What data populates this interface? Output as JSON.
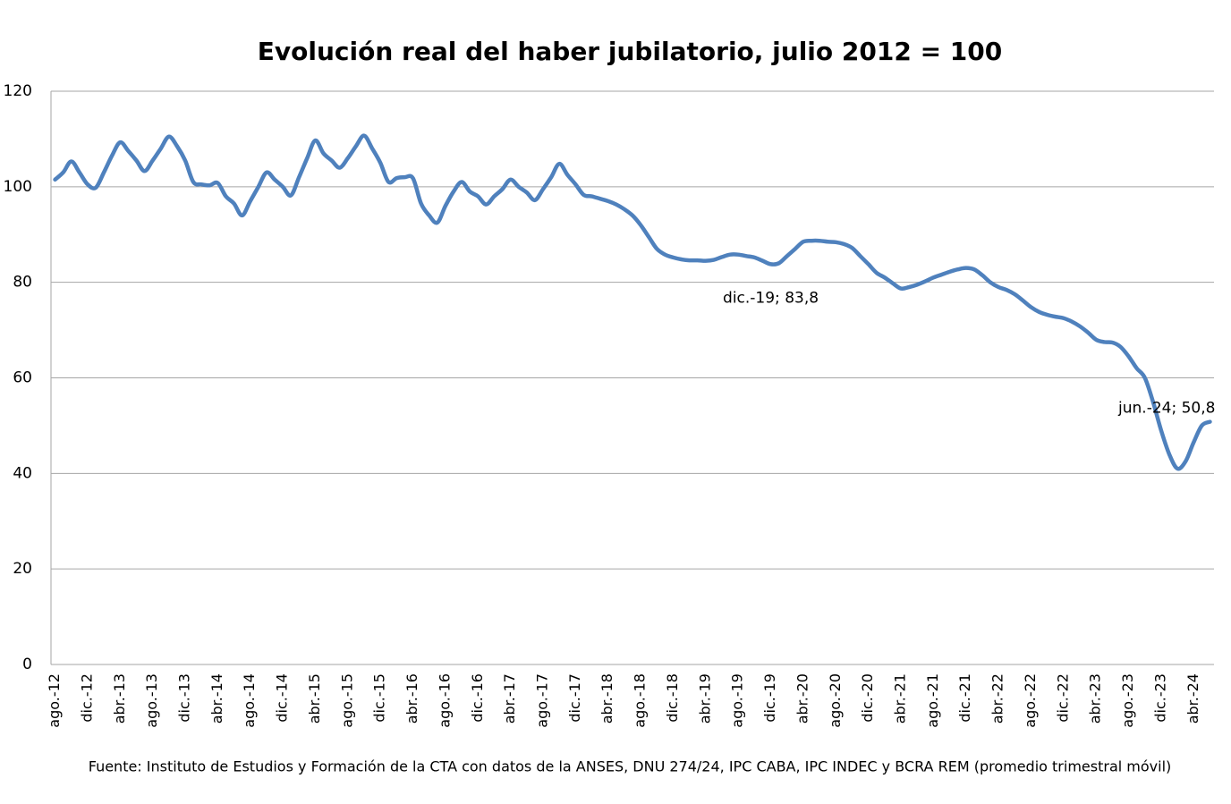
{
  "chart_data": {
    "type": "line",
    "title": "Evolución real del haber jubilatorio, julio 2012 = 100",
    "source": "Fuente: Instituto de Estudios y Formación de la CTA con datos de la ANSES, DNU 274/24, IPC CABA, IPC INDEC y BCRA REM (promedio trimestral móvil)",
    "categories": [
      "ago.-12",
      null,
      null,
      null,
      "dic.-12",
      null,
      null,
      null,
      "abr.-13",
      null,
      null,
      null,
      "ago.-13",
      null,
      null,
      null,
      "dic.-13",
      null,
      null,
      null,
      "abr.-14",
      null,
      null,
      null,
      "ago.-14",
      null,
      null,
      null,
      "dic.-14",
      null,
      null,
      null,
      "abr.-15",
      null,
      null,
      null,
      "ago.-15",
      null,
      null,
      null,
      "dic.-15",
      null,
      null,
      null,
      "abr.-16",
      null,
      null,
      null,
      "ago.-16",
      null,
      null,
      null,
      "dic.-16",
      null,
      null,
      null,
      "abr.-17",
      null,
      null,
      null,
      "ago.-17",
      null,
      null,
      null,
      "dic.-17",
      null,
      null,
      null,
      "abr.-18",
      null,
      null,
      null,
      "ago.-18",
      null,
      null,
      null,
      "dic.-18",
      null,
      null,
      null,
      "abr.-19",
      null,
      null,
      null,
      "ago.-19",
      null,
      null,
      null,
      "dic.-19",
      null,
      null,
      null,
      "abr.-20",
      null,
      null,
      null,
      "ago.-20",
      null,
      null,
      null,
      "dic.-20",
      null,
      null,
      null,
      "abr.-21",
      null,
      null,
      null,
      "ago.-21",
      null,
      null,
      null,
      "dic.-21",
      null,
      null,
      null,
      "abr.-22",
      null,
      null,
      null,
      "ago.-22",
      null,
      null,
      null,
      "dic.-22",
      null,
      null,
      null,
      "abr.-23",
      null,
      null,
      null,
      "ago.-23",
      null,
      null,
      null,
      "dic.-23",
      null,
      null,
      null,
      "abr.-24",
      null,
      null
    ],
    "series": [
      {
        "color": "#4f81bd",
        "values": [
          101.5,
          103,
          105.3,
          103,
          100.5,
          99.8,
          103,
          106.5,
          109.3,
          107.5,
          105.5,
          103.3,
          105.5,
          108,
          110.5,
          108.5,
          105.5,
          101,
          100.5,
          100.3,
          100.8,
          98,
          96.5,
          94,
          97,
          100,
          103,
          101.5,
          100,
          98.2,
          102,
          106,
          109.7,
          107,
          105.5,
          104,
          106,
          108.5,
          110.7,
          108,
          105,
          101,
          101.8,
          102,
          101.8,
          96.5,
          94,
          92.5,
          96,
          99,
          101,
          99,
          98,
          96.3,
          98,
          99.5,
          101.5,
          100,
          98.8,
          97.2,
          99.5,
          102,
          104.8,
          102.5,
          100.5,
          98.3,
          98,
          97.5,
          97,
          96.3,
          95.3,
          94,
          92,
          89.5,
          87,
          85.8,
          85.2,
          84.8,
          84.6,
          84.6,
          84.5,
          84.7,
          85.3,
          85.8,
          85.8,
          85.5,
          85.2,
          84.5,
          83.8,
          84,
          85.5,
          87,
          88.5,
          88.7,
          88.7,
          88.5,
          88.4,
          88,
          87.2,
          85.5,
          83.8,
          82,
          81,
          79.8,
          78.7,
          79,
          79.5,
          80.2,
          81,
          81.6,
          82.2,
          82.7,
          83,
          82.7,
          81.5,
          80,
          79,
          78.4,
          77.5,
          76.2,
          74.8,
          73.8,
          73.2,
          72.8,
          72.5,
          71.8,
          70.8,
          69.5,
          68,
          67.5,
          67.4,
          66.5,
          64.5,
          62,
          60,
          55,
          49,
          44,
          41,
          42.5,
          46.5,
          50,
          50.8
        ],
        "value_labels": [
          null,
          null,
          null,
          null,
          null,
          null,
          null,
          null,
          null,
          null,
          null,
          null,
          null,
          null,
          null,
          null,
          null,
          null,
          null,
          null,
          null,
          null,
          null,
          null,
          null,
          null,
          null,
          null,
          null,
          null,
          null,
          null,
          null,
          null,
          null,
          null,
          null,
          null,
          null,
          null,
          null,
          null,
          null,
          null,
          null,
          null,
          null,
          null,
          null,
          null,
          null,
          null,
          null,
          null,
          null,
          null,
          null,
          null,
          null,
          null,
          null,
          null,
          null,
          null,
          null,
          null,
          null,
          null,
          null,
          null,
          null,
          null,
          null,
          null,
          null,
          null,
          null,
          null,
          null,
          null,
          null,
          null,
          null,
          null,
          null,
          null,
          null,
          null,
          "dic.-19; 83,8",
          null,
          null,
          null,
          null,
          null,
          null,
          null,
          null,
          null,
          null,
          null,
          null,
          null,
          null,
          null,
          null,
          null,
          null,
          null,
          null,
          null,
          null,
          null,
          null,
          null,
          null,
          null,
          null,
          null,
          null,
          null,
          null,
          null,
          null,
          null,
          null,
          null,
          null,
          null,
          null,
          null,
          null,
          null,
          null,
          null,
          null,
          null,
          null,
          null,
          null,
          null,
          null,
          null,
          "jun.-24; 50,8"
        ]
      }
    ],
    "ylim": [
      0,
      120
    ],
    "yticks": [
      0,
      20,
      40,
      60,
      80,
      100,
      120
    ],
    "grid": true
  }
}
